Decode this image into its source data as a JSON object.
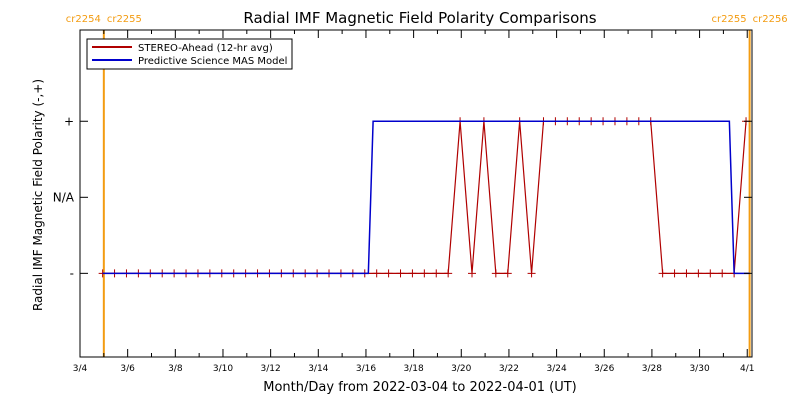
{
  "chart_data": {
    "type": "line",
    "title": "Radial IMF Magnetic Field Polarity Comparisons",
    "xlabel": "Month/Day from 2022-03-04 to 2022-04-01 (UT)",
    "ylabel": "Radial IMF Magnetic Field Polarity (-,+)",
    "x_tick_labels": [
      "3/4",
      "3/6",
      "3/8",
      "3/10",
      "3/12",
      "3/14",
      "3/16",
      "3/18",
      "3/20",
      "3/22",
      "3/24",
      "3/26",
      "3/28",
      "3/30",
      "4/1"
    ],
    "x_ticks_day": [
      0,
      2,
      4,
      6,
      8,
      10,
      12,
      14,
      16,
      18,
      20,
      22,
      24,
      26,
      28
    ],
    "xlim_day": [
      0,
      28.2
    ],
    "y_tick_labels": [
      "-",
      "N/A",
      "+"
    ],
    "y_ticks": [
      -1,
      0,
      1
    ],
    "ylim": [
      -2.1,
      2.2
    ],
    "grid": false,
    "legend_position": "top-left",
    "legend": [
      {
        "name": "STEREO-Ahead (12-hr avg)",
        "color": "#b00000"
      },
      {
        "name": "Predictive Science MAS Model",
        "color": "#0000cc"
      }
    ],
    "series": [
      {
        "name": "STEREO-Ahead (12-hr avg)",
        "color": "#b00000",
        "marker": "plus",
        "x_day": [
          0.95,
          1.45,
          1.95,
          2.45,
          2.95,
          3.45,
          3.95,
          4.45,
          4.95,
          5.45,
          5.95,
          6.45,
          6.95,
          7.45,
          7.95,
          8.45,
          8.95,
          9.45,
          9.95,
          10.45,
          10.95,
          11.45,
          11.95,
          12.45,
          12.95,
          13.45,
          13.95,
          14.45,
          14.95,
          15.45,
          15.95,
          16.45,
          16.95,
          17.45,
          17.95,
          18.45,
          18.95,
          19.45,
          19.95,
          20.45,
          20.95,
          21.45,
          21.95,
          22.45,
          22.95,
          23.45,
          23.95,
          24.45,
          24.95,
          25.45,
          25.95,
          26.45,
          26.95,
          27.45,
          27.95
        ],
        "values": [
          -1,
          -1,
          -1,
          -1,
          -1,
          -1,
          -1,
          -1,
          -1,
          -1,
          -1,
          -1,
          -1,
          -1,
          -1,
          -1,
          -1,
          -1,
          -1,
          -1,
          -1,
          -1,
          -1,
          -1,
          -1,
          -1,
          -1,
          -1,
          -1,
          -1,
          1,
          -1,
          1,
          -1,
          -1,
          1,
          -1,
          1,
          1,
          1,
          1,
          1,
          1,
          1,
          1,
          1,
          1,
          -1,
          -1,
          -1,
          -1,
          -1,
          -1,
          -1,
          1
        ]
      },
      {
        "name": "Predictive Science MAS Model",
        "color": "#0000cc",
        "x_day": [
          0.95,
          12.1,
          12.3,
          27.25,
          27.45,
          28.1
        ],
        "values": [
          -1,
          -1,
          1,
          1,
          -1,
          -1
        ]
      }
    ],
    "carrington_markers": [
      {
        "day": 1.0,
        "label_left": "cr2254",
        "label_right": "cr2255"
      },
      {
        "day": 28.1,
        "label_left": "cr2255",
        "label_right": "cr2256"
      }
    ],
    "marker_color": "#f39c12"
  }
}
